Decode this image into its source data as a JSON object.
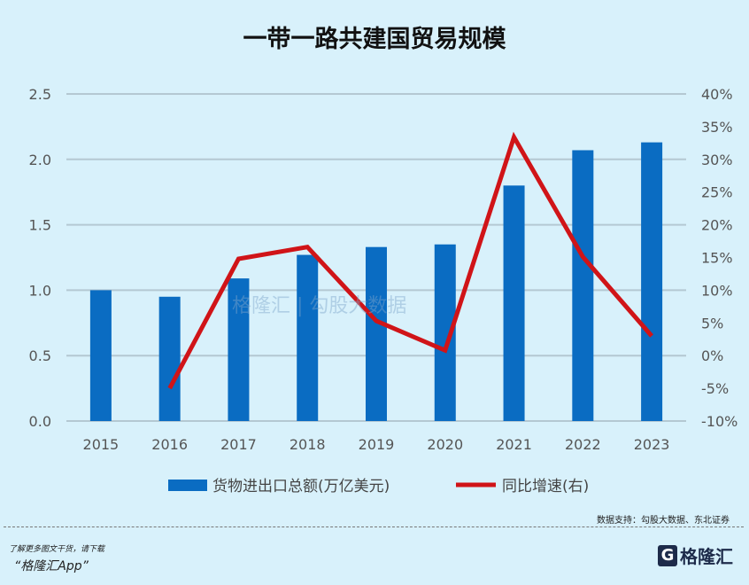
{
  "chart_data": {
    "type": "bar+line",
    "title": "一带一路共建国贸易规模",
    "categories": [
      "2015",
      "2016",
      "2017",
      "2018",
      "2019",
      "2020",
      "2021",
      "2022",
      "2023"
    ],
    "series": [
      {
        "name": "货物进出口总额(万亿美元)",
        "type": "bar",
        "axis": "left",
        "color": "#0a6cc2",
        "values": [
          1.0,
          0.95,
          1.09,
          1.27,
          1.33,
          1.35,
          1.8,
          2.07,
          2.13
        ]
      },
      {
        "name": "同比增速(右)",
        "type": "line",
        "axis": "right",
        "color": "#d01418",
        "values": [
          null,
          -5.0,
          14.8,
          16.6,
          5.3,
          0.8,
          33.4,
          15.1,
          3.0
        ]
      }
    ],
    "y_left": {
      "range": [
        0,
        2.5
      ],
      "ticks": [
        "0.0",
        "0.5",
        "1.0",
        "1.5",
        "2.0",
        "2.5"
      ]
    },
    "y_right": {
      "range": [
        -10,
        40
      ],
      "ticks": [
        "-10%",
        "-5%",
        "0%",
        "5%",
        "10%",
        "15%",
        "20%",
        "25%",
        "30%",
        "35%",
        "40%"
      ]
    },
    "grid": true,
    "legend": "bottom"
  },
  "watermark": "格隆汇 | 勾股大数据 www.gogudata.com",
  "footer": {
    "source": "数据支持：勾股大数据、东北证券",
    "promo_line1": "了解更多图文干货，请下载",
    "promo_line2": "“格隆汇App”",
    "logo_text": "格隆汇"
  }
}
